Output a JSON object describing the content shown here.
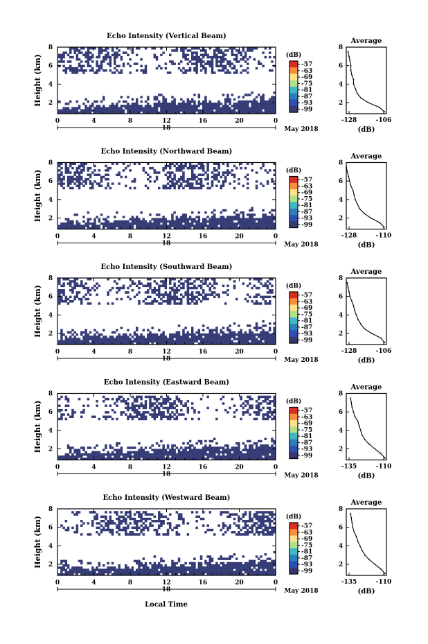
{
  "xlabel": "Local Time",
  "colorbar_unit": "(dB)",
  "colorbar_labels": [
    "-57",
    "-63",
    "-69",
    "-75",
    "-81",
    "-87",
    "-93",
    "-99"
  ],
  "colorbar_colors": [
    "#d7301f",
    "#fc8d3c",
    "#fee08b",
    "#b2df8a",
    "#41b6c4",
    "#2c7fb8",
    "#2f4fb3",
    "#35396e"
  ],
  "fill_color": "#363c75",
  "chart_data": [
    {
      "type": "heatmap",
      "title": "Echo Intensity (Vertical Beam)",
      "ylabel": "Height (km)",
      "xlim": [
        0,
        24
      ],
      "ylim": [
        0.8,
        8
      ],
      "x_ticks": [
        "0",
        "4",
        "8",
        "12",
        "16",
        "20",
        "0"
      ],
      "y_ticks": [
        "2",
        "4",
        "6",
        "8"
      ],
      "date_center": "18",
      "date_right": "May 2018",
      "profile": {
        "title": "Average",
        "xlabel": "(dB)",
        "xlim": [
          -128,
          -106
        ],
        "x_ticks": [
          "-128",
          "-106"
        ],
        "y_ticks": [
          "2",
          "4",
          "6",
          "8"
        ],
        "ylim": [
          0.8,
          8
        ],
        "x": [
          -127,
          -126.5,
          -126,
          -125.5,
          -125.5,
          -125,
          -124,
          -124,
          -123,
          -122,
          -120,
          -116,
          -110,
          -107
        ],
        "y": [
          7.5,
          7,
          6.5,
          6,
          5.5,
          5,
          4.5,
          4,
          3.5,
          3,
          2.5,
          2,
          1.5,
          1
        ]
      }
    },
    {
      "type": "heatmap",
      "title": "Echo Intensity (Northward Beam)",
      "ylabel": "Height (km)",
      "xlim": [
        0,
        24
      ],
      "ylim": [
        0.8,
        8
      ],
      "x_ticks": [
        "0",
        "4",
        "8",
        "12",
        "16",
        "20",
        "0"
      ],
      "y_ticks": [
        "2",
        "4",
        "6",
        "8"
      ],
      "date_center": "18",
      "date_right": "May 2018",
      "profile": {
        "title": "Average",
        "xlabel": "(dB)",
        "xlim": [
          -128,
          -110
        ],
        "x_ticks": [
          "-128",
          "-110"
        ],
        "y_ticks": [
          "2",
          "4",
          "6",
          "8"
        ],
        "ylim": [
          0.8,
          8
        ],
        "x": [
          -128,
          -127.5,
          -127,
          -126.5,
          -126,
          -125,
          -124.5,
          -124,
          -123,
          -122,
          -120,
          -117,
          -113,
          -111
        ],
        "y": [
          7.5,
          7,
          6.5,
          6,
          5.5,
          5,
          4.5,
          4,
          3.5,
          3,
          2.5,
          2,
          1.5,
          1
        ]
      }
    },
    {
      "type": "heatmap",
      "title": "Echo Intensity (Southward Beam)",
      "ylabel": "Height (km)",
      "xlim": [
        0,
        24
      ],
      "ylim": [
        0.8,
        8
      ],
      "x_ticks": [
        "0",
        "4",
        "8",
        "12",
        "16",
        "20",
        "0"
      ],
      "y_ticks": [
        "2",
        "4",
        "6",
        "8"
      ],
      "date_center": "18",
      "date_right": "May 2018",
      "profile": {
        "title": "Average",
        "xlabel": "(dB)",
        "xlim": [
          -128,
          -106
        ],
        "x_ticks": [
          "-128",
          "-106"
        ],
        "y_ticks": [
          "2",
          "4",
          "6",
          "8"
        ],
        "ylim": [
          0.8,
          8
        ],
        "x": [
          -127.5,
          -127,
          -126.5,
          -126,
          -125,
          -124,
          -123.5,
          -122.5,
          -121.5,
          -120,
          -118,
          -114,
          -109,
          -107
        ],
        "y": [
          7.5,
          7,
          6.5,
          6,
          5.5,
          5,
          4.5,
          4,
          3.5,
          3,
          2.5,
          2,
          1.5,
          1
        ]
      }
    },
    {
      "type": "heatmap",
      "title": "Echo Intensity (Eastward Beam)",
      "ylabel": "Height (km)",
      "xlim": [
        0,
        24
      ],
      "ylim": [
        0.8,
        8
      ],
      "x_ticks": [
        "0",
        "4",
        "8",
        "12",
        "16",
        "20",
        "0"
      ],
      "y_ticks": [
        "2",
        "4",
        "6",
        "8"
      ],
      "date_center": "18",
      "date_right": "May 2018",
      "profile": {
        "title": "Average",
        "xlabel": "(dB)",
        "xlim": [
          -138,
          -110
        ],
        "x_ticks": [
          "-135",
          "-110"
        ],
        "y_ticks": [
          "2",
          "4",
          "6",
          "8"
        ],
        "ylim": [
          0.8,
          8
        ],
        "x": [
          -135,
          -134.5,
          -134,
          -133,
          -132,
          -130,
          -129,
          -128,
          -127,
          -125,
          -122,
          -118,
          -114,
          -111
        ],
        "y": [
          7.5,
          7,
          6.5,
          6,
          5.5,
          5,
          4.5,
          4,
          3.5,
          3,
          2.5,
          2,
          1.5,
          1
        ]
      }
    },
    {
      "type": "heatmap",
      "title": "Echo Intensity (Westward Beam)",
      "ylabel": "Height (km)",
      "xlim": [
        0,
        24
      ],
      "ylim": [
        0.8,
        8
      ],
      "x_ticks": [
        "0",
        "4",
        "8",
        "12",
        "16",
        "20",
        "0"
      ],
      "y_ticks": [
        "2",
        "4",
        "6",
        "8"
      ],
      "date_center": "18",
      "date_right": "May 2018",
      "profile": {
        "title": "Average",
        "xlabel": "(dB)",
        "xlim": [
          -138,
          -110
        ],
        "x_ticks": [
          "-135",
          "-110"
        ],
        "y_ticks": [
          "2",
          "4",
          "6",
          "8"
        ],
        "ylim": [
          0.8,
          8
        ],
        "x": [
          -135,
          -134.5,
          -134,
          -133.5,
          -132.5,
          -131,
          -130,
          -128.5,
          -127,
          -125,
          -122,
          -118,
          -114,
          -111
        ],
        "y": [
          7.5,
          7,
          6.5,
          6,
          5.5,
          5,
          4.5,
          4,
          3.5,
          3,
          2.5,
          2,
          1.5,
          1
        ]
      }
    }
  ]
}
